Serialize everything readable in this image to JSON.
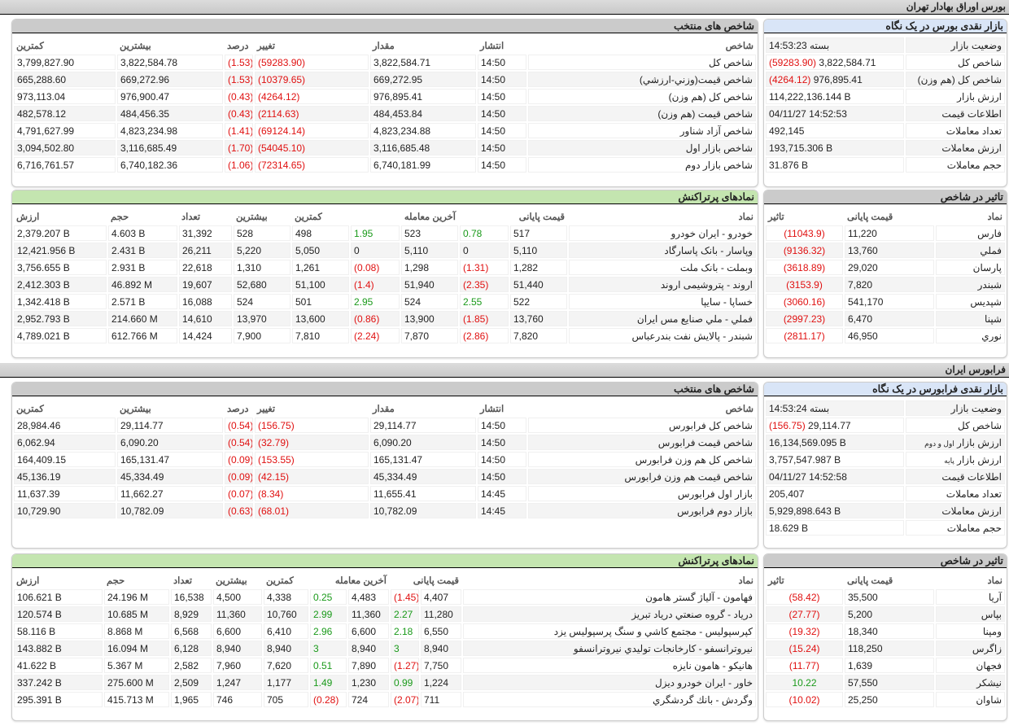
{
  "sections": [
    {
      "title": "بورس اوراق بهادار تهران",
      "glance": {
        "title": "بازار نقدی بورس در یک نگاه",
        "rows": [
          {
            "label": "وضعیت بازار",
            "value": "بسته 14:53:23"
          },
          {
            "label": "شاخص کل",
            "value": "3,822,584.71",
            "change": "(59283.90)"
          },
          {
            "label": "شاخص کل (هم وزن)",
            "value": "976,895.41",
            "change": "(4264.12)"
          },
          {
            "label": "ارزش بازار",
            "value": "114,222,136.144 B"
          },
          {
            "label": "اطلاعات قیمت",
            "value": "04/11/27 14:52:53"
          },
          {
            "label": "تعداد معاملات",
            "value": "492,145"
          },
          {
            "label": "ارزش معاملات",
            "value": "193,715.306 B"
          },
          {
            "label": "حجم معاملات",
            "value": "31.876 B"
          }
        ]
      },
      "indices": {
        "title": "شاخص های منتخب",
        "headers": [
          "شاخص",
          "انتشار",
          "مقدار",
          "تغییر",
          "درصد",
          "بیشترین",
          "کمترین"
        ],
        "rows": [
          [
            "شاخص کل",
            "14:50",
            "3,822,584.71",
            "(59283.90)",
            "(1.53)",
            "3,822,584.78",
            "3,799,827.90"
          ],
          [
            "شاخص قیمت(وزني-ارزشي)",
            "14:50",
            "669,272.95",
            "(10379.65)",
            "(1.53)",
            "669,272.96",
            "665,288.60"
          ],
          [
            "شاخص كل (هم وزن)",
            "14:50",
            "976,895.41",
            "(4264.12)",
            "(0.43)",
            "976,900.47",
            "973,113.04"
          ],
          [
            "شاخص قیمت (هم وزن)",
            "14:50",
            "484,453.84",
            "(2114.63)",
            "(0.43)",
            "484,456.35",
            "482,578.12"
          ],
          [
            "شاخص آزاد شناور",
            "14:50",
            "4,823,234.88",
            "(69124.14)",
            "(1.41)",
            "4,823,234.98",
            "4,791,627.99"
          ],
          [
            "شاخص بازار اول",
            "14:50",
            "3,116,685.48",
            "(54045.10)",
            "(1.70)",
            "3,116,685.49",
            "3,094,502.80"
          ],
          [
            "شاخص بازار دوم",
            "14:50",
            "6,740,181.99",
            "(72314.65)",
            "(1.06)",
            "6,740,182.36",
            "6,716,761.57"
          ]
        ]
      },
      "impact": {
        "title": "تاثیر در شاخص",
        "headers": [
          "نماد",
          "قیمت پایانی",
          "تاثیر"
        ],
        "rows": [
          [
            "فارس",
            "11,220",
            "(11043.9)"
          ],
          [
            "فملي",
            "13,760",
            "(9136.32)"
          ],
          [
            "پارسان",
            "29,020",
            "(3618.89)"
          ],
          [
            "شبندر",
            "7,820",
            "(3153.9)"
          ],
          [
            "شپديس",
            "541,170",
            "(3060.16)"
          ],
          [
            "شپنا",
            "6,470",
            "(2997.23)"
          ],
          [
            "نوري",
            "46,950",
            "(2811.17)"
          ]
        ]
      },
      "active": {
        "title": "نمادهای پرتراکنش",
        "headers": [
          "نماد",
          "قیمت پایانی",
          "آخرین معامله",
          "کمترین",
          "بیشترین",
          "تعداد",
          "حجم",
          "ارزش"
        ],
        "rows": [
          [
            "خودرو - ایران خودرو",
            "517",
            "0.78",
            "523",
            "1.95",
            "498",
            "528",
            "31,392",
            "4.603 B",
            "2,379.207 B"
          ],
          [
            "وپاسار - بانک پاسارگاد",
            "5,110",
            "0",
            "5,110",
            "0",
            "5,050",
            "5,220",
            "26,211",
            "2.431 B",
            "12,421.956 B"
          ],
          [
            "وبملت - بانک ملت",
            "1,282",
            "(1.31)",
            "1,298",
            "(0.08)",
            "1,261",
            "1,310",
            "22,618",
            "2.931 B",
            "3,756.655 B"
          ],
          [
            "اروند - پتروشیمی اروند",
            "51,440",
            "(2.35)",
            "51,940",
            "(1.4)",
            "51,100",
            "52,680",
            "19,607",
            "46.892 M",
            "2,412.303 B"
          ],
          [
            "خساپا - سایپا",
            "522",
            "2.55",
            "524",
            "2.95",
            "501",
            "524",
            "16,088",
            "2.571 B",
            "1,342.418 B"
          ],
          [
            "فملي - ملي صنايع مس ايران",
            "13,760",
            "(1.85)",
            "13,900",
            "(0.86)",
            "13,600",
            "13,970",
            "14,610",
            "214.660 M",
            "2,952.793 B"
          ],
          [
            "شبندر - پالايش نفت بندرعباس",
            "7,820",
            "(2.86)",
            "7,870",
            "(2.24)",
            "7,810",
            "7,900",
            "14,424",
            "612.766 M",
            "4,789.021 B"
          ]
        ]
      }
    },
    {
      "title": "فرابورس ایران",
      "glance": {
        "title": "بازار نقدی فرابورس در یک نگاه",
        "rows": [
          {
            "label": "وضعیت بازار",
            "value": "بسته 14:53:24"
          },
          {
            "label": "شاخص کل",
            "value": "29,114.77",
            "change": "(156.75)"
          },
          {
            "label": "ارزش بازار",
            "sub": "اول و دوم",
            "value": "16,134,569.095 B"
          },
          {
            "label": "ارزش بازار",
            "sub": "پایه",
            "value": "3,757,547.987 B"
          },
          {
            "label": "اطلاعات قیمت",
            "value": "04/11/27 14:52:58"
          },
          {
            "label": "تعداد معاملات",
            "value": "205,407"
          },
          {
            "label": "ارزش معاملات",
            "value": "5,929,898.643 B"
          },
          {
            "label": "حجم معاملات",
            "value": "18.629 B"
          }
        ]
      },
      "indices": {
        "title": "شاخص های منتخب",
        "headers": [
          "شاخص",
          "انتشار",
          "مقدار",
          "تغییر",
          "درصد",
          "بیشترین",
          "کمترین"
        ],
        "rows": [
          [
            "شاخص كل فرابورس",
            "14:50",
            "29,114.77",
            "(156.75)",
            "(0.54)",
            "29,114.77",
            "28,984.46"
          ],
          [
            "شاخص قیمت فرابورس",
            "14:50",
            "6,090.20",
            "(32.79)",
            "(0.54)",
            "6,090.20",
            "6,062.94"
          ],
          [
            "شاخص کل هم وزن فرابورس",
            "14:50",
            "165,131.47",
            "(153.55)",
            "(0.09)",
            "165,131.47",
            "164,409.15"
          ],
          [
            "شاخص قیمت هم وزن فرابورس",
            "14:50",
            "45,334.49",
            "(42.15)",
            "(0.09)",
            "45,334.49",
            "45,136.19"
          ],
          [
            "بازار اول فرابورس",
            "14:45",
            "11,655.41",
            "(8.34)",
            "(0.07)",
            "11,662.27",
            "11,637.39"
          ],
          [
            "بازار دوم فرابورس",
            "14:45",
            "10,782.09",
            "(68.01)",
            "(0.63)",
            "10,782.09",
            "10,729.90"
          ]
        ]
      },
      "impact": {
        "title": "تاثیر در شاخص",
        "headers": [
          "نماد",
          "قیمت پایانی",
          "تاثیر"
        ],
        "rows": [
          [
            "آريا",
            "35,500",
            "(58.42)"
          ],
          [
            "بپاس",
            "5,200",
            "(27.77)"
          ],
          [
            "ومپنا",
            "18,340",
            "(19.32)"
          ],
          [
            "زاگرس",
            "118,250",
            "(15.24)"
          ],
          [
            "فجهان",
            "1,639",
            "(11.77)"
          ],
          [
            "نيشكر",
            "57,550",
            "10.22"
          ],
          [
            "شاوان",
            "25,250",
            "(10.02)"
          ]
        ]
      },
      "active": {
        "title": "نمادهای پرتراکنش",
        "headers": [
          "نماد",
          "قیمت پایانی",
          "آخرین معامله",
          "کمترین",
          "بیشترین",
          "تعداد",
          "حجم",
          "ارزش"
        ],
        "rows": [
          [
            "فهامون - آلياژ گستر هامون",
            "4,407",
            "(1.45)",
            "4,483",
            "0.25",
            "4,338",
            "4,500",
            "16,538",
            "24.196 M",
            "106.621 B"
          ],
          [
            "درياد - گروه صنعتي درياد تبريز",
            "11,280",
            "2.27",
            "11,360",
            "2.99",
            "10,760",
            "11,360",
            "8,929",
            "10.685 M",
            "120.574 B"
          ],
          [
            "كپرسپوليس - مجتمع كاشي و سنگ پرسپوليس يزد",
            "6,550",
            "2.18",
            "6,600",
            "2.96",
            "6,410",
            "6,600",
            "6,568",
            "8.868 M",
            "58.116 B"
          ],
          [
            "نيروترانسفو - كارخانجات توليدي نيروترانسفو",
            "8,940",
            "3",
            "8,940",
            "3",
            "8,940",
            "8,940",
            "6,128",
            "16.094 M",
            "143.882 B"
          ],
          [
            "هانيكو - هامون نايزه",
            "7,750",
            "(1.27)",
            "7,890",
            "0.51",
            "7,620",
            "7,960",
            "2,582",
            "5.367 M",
            "41.622 B"
          ],
          [
            "خاور - ايران خودرو ديزل",
            "1,224",
            "0.99",
            "1,230",
            "1.49",
            "1,177",
            "1,247",
            "2,509",
            "275.600 M",
            "337.242 B"
          ],
          [
            "وگردش - بانك گردشگري",
            "711",
            "(2.07)",
            "724",
            "(0.28)",
            "705",
            "746",
            "1,965",
            "415.713 M",
            "295.391 B"
          ]
        ]
      }
    }
  ]
}
